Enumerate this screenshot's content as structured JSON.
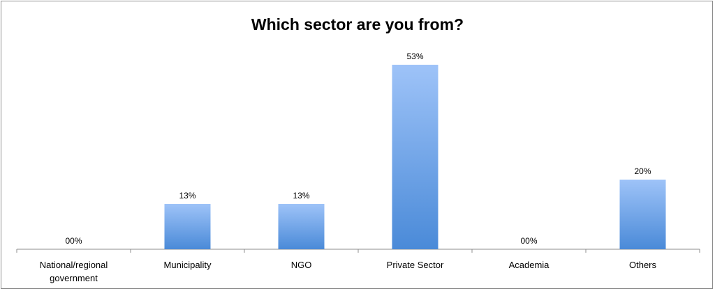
{
  "chart_data": {
    "type": "bar",
    "title": "Which sector are you from?",
    "categories": [
      "National/regional government",
      "Municipality",
      "NGO",
      "Private Sector",
      "Academia",
      "Others"
    ],
    "category_lines": [
      [
        "National/regional",
        "government"
      ],
      [
        "Municipality"
      ],
      [
        "NGO"
      ],
      [
        "Private Sector"
      ],
      [
        "Academia"
      ],
      [
        "Others"
      ]
    ],
    "values": [
      0,
      13,
      13,
      53,
      0,
      20
    ],
    "data_labels": [
      "00%",
      "13%",
      "13%",
      "53%",
      "00%",
      "20%"
    ],
    "ylim": [
      0,
      60
    ],
    "grid": false,
    "legend": "none",
    "colors": {
      "bar_top": "#9ec3f8",
      "bar_bottom": "#4a8ad8",
      "axis": "#8c8c8c"
    }
  }
}
